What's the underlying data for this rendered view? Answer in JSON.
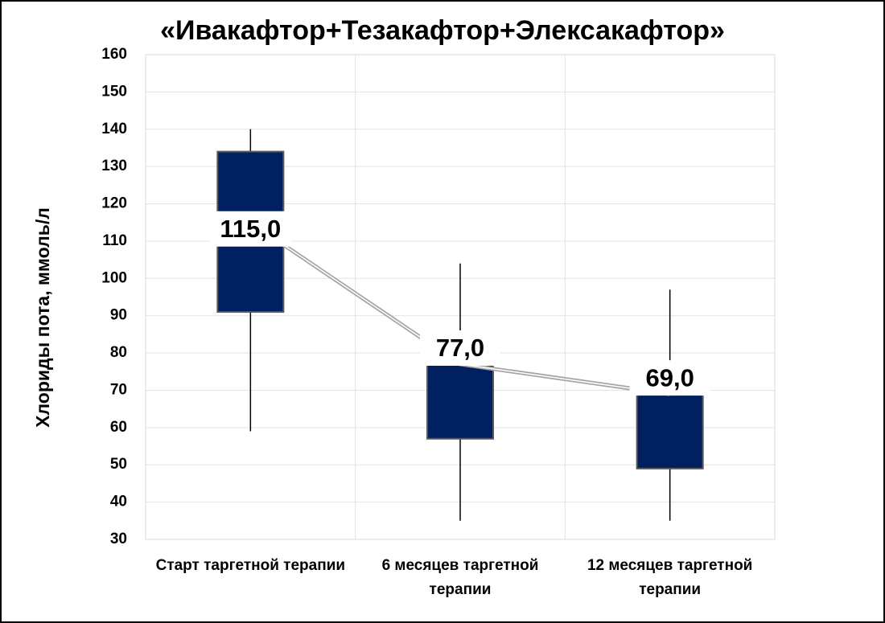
{
  "chart_data": {
    "type": "box",
    "title": "«Ивакафтор+Тезакафтор+Элексакафтор»",
    "y_label": "Хлориды пота, ммоль/л",
    "categories": [
      "Старт таргетной терапии",
      "6 месяцев таргетной терапии",
      "12 месяцев таргетной терапии"
    ],
    "min": [
      59,
      35,
      35
    ],
    "q1": [
      91,
      57,
      49
    ],
    "median": [
      115,
      77,
      69
    ],
    "q3": [
      134,
      78,
      69
    ],
    "max": [
      140,
      104,
      97
    ],
    "value_labels": [
      "115,0",
      "77,0",
      "69,0"
    ],
    "color": "#002060",
    "ylim": [
      30,
      160
    ],
    "yticks": [
      30,
      40,
      50,
      60,
      70,
      80,
      90,
      100,
      110,
      120,
      130,
      140,
      150,
      160
    ],
    "grid": true
  }
}
